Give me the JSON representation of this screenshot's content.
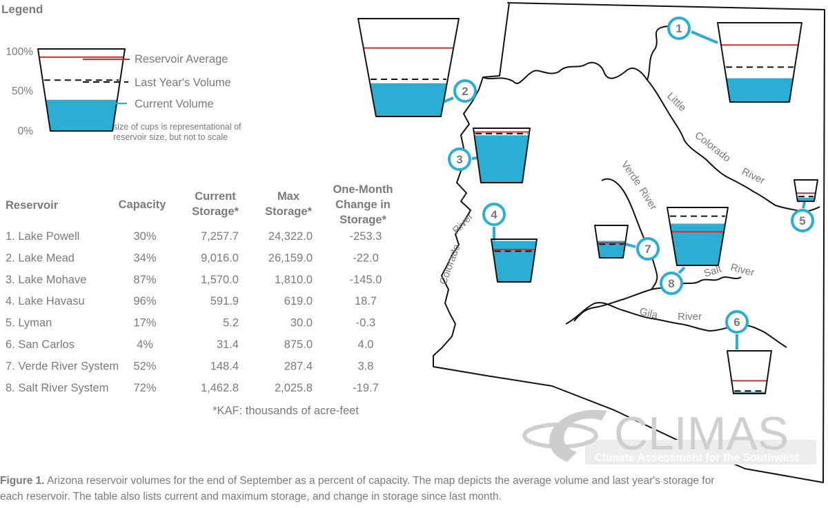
{
  "legend": {
    "title": "Legend",
    "axis_labels": [
      "100%",
      "50%",
      "0%"
    ],
    "average_label": "Reservoir Average",
    "last_year_label": "Last Year's Volume",
    "current_label": "Current Volume",
    "note_line1": "size of cups is representational of",
    "note_line2": "reservoir size, but not to scale",
    "example": {
      "average": 90,
      "last_year": 62,
      "current": 38
    }
  },
  "table": {
    "headers": {
      "reservoir": "Reservoir",
      "capacity": "Capacity",
      "current_1": "Current",
      "current_2": "Storage*",
      "max_1": "Max",
      "max_2": "Storage*",
      "change_1": "One-Month",
      "change_2": "Change in",
      "change_3": "Storage*"
    },
    "rows": [
      {
        "name": "1. Lake Powell",
        "capacity": "30%",
        "current": "7,257.7",
        "max": "24,322.0",
        "change": "-253.3"
      },
      {
        "name": "2. Lake Mead",
        "capacity": "34%",
        "current": "9,016.0",
        "max": "26,159.0",
        "change": "-22.0"
      },
      {
        "name": "3. Lake Mohave",
        "capacity": "87%",
        "current": "1,570.0",
        "max": "1,810.0",
        "change": "-145.0"
      },
      {
        "name": "4. Lake Havasu",
        "capacity": "96%",
        "current": "591.9",
        "max": "619.0",
        "change": "18.7"
      },
      {
        "name": "5. Lyman",
        "capacity": "17%",
        "current": "5.2",
        "max": "30.0",
        "change": "-0.3"
      },
      {
        "name": "6. San Carlos",
        "capacity": "4%",
        "current": "31.4",
        "max": "875.0",
        "change": "4.0"
      },
      {
        "name": "7. Verde River System",
        "capacity": "52%",
        "current": "148.4",
        "max": "287.4",
        "change": "3.8"
      },
      {
        "name": "8. Salt River System",
        "capacity": "72%",
        "current": "1,462.8",
        "max": "2,025.8",
        "change": "-19.7"
      }
    ],
    "footnote": "*KAF: thousands of acre-feet"
  },
  "map": {
    "rivers": {
      "little_1": "Little",
      "colorado_east": "Colorado",
      "river_east": "River",
      "verde_1": "Verde",
      "verde_2": "River",
      "colorado_west": "Colorado",
      "river_west": "River",
      "salt_1": "Salt",
      "salt_2": "River",
      "gila_1": "Gila",
      "gila_2": "River"
    },
    "cups": [
      {
        "id": "1",
        "current": 30,
        "last_year": 44,
        "average": 72
      },
      {
        "id": "2",
        "current": 34,
        "last_year": 38,
        "average": 70
      },
      {
        "id": "3",
        "current": 87,
        "last_year": 90,
        "average": 93
      },
      {
        "id": "4",
        "current": 96,
        "last_year": 72,
        "average": 76
      },
      {
        "id": "5",
        "current": 17,
        "last_year": 22,
        "average": 38
      },
      {
        "id": "6",
        "current": 4,
        "last_year": 6,
        "average": 30
      },
      {
        "id": "7",
        "current": 52,
        "last_year": 42,
        "average": 46
      },
      {
        "id": "8",
        "current": 72,
        "last_year": 85,
        "average": 58
      }
    ]
  },
  "logo": {
    "name": "CLIMAS",
    "tagline": "Climate Assessment for the Southwest"
  },
  "caption": {
    "label": "Figure 1.",
    "line1": "Arizona reservoir volumes for the end of September as a percent of capacity. The map depicts the average volume and last year's storage for",
    "line2": "each reservoir. The table also lists current and maximum storage, and change in storage since last month."
  },
  "colors": {
    "water": "#2aaed3",
    "average_line": "#d62b2b",
    "outline": "#111111",
    "text": "#7a7a7a",
    "label_ring": "#2aaed3"
  }
}
